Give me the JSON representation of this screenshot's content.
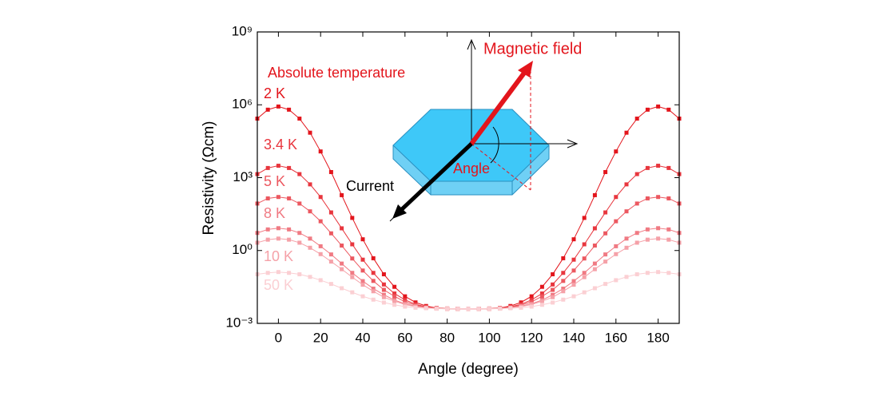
{
  "chart_data": {
    "type": "scatter",
    "xlabel": "Angle (degree)",
    "ylabel": "Resistivity (Ωcm)",
    "legend_title": "Absolute temperature",
    "annotations": [
      "Magnetic field",
      "Angle",
      "Current"
    ],
    "yscale": "log",
    "xlim": [
      -10,
      190
    ],
    "xticks": [
      0,
      20,
      40,
      60,
      80,
      100,
      120,
      140,
      160,
      180
    ],
    "ylim": [
      0.001,
      1000000000
    ],
    "yticks": [
      {
        "value": 0.001,
        "label": "10⁻³"
      },
      {
        "value": 1,
        "label": "10⁰"
      },
      {
        "value": 1000,
        "label": "10³"
      },
      {
        "value": 1000000,
        "label": "10⁶"
      },
      {
        "value": 1000000000,
        "label": "10⁹"
      }
    ],
    "x": [
      -10,
      -5,
      0,
      5,
      10,
      15,
      20,
      25,
      30,
      35,
      40,
      45,
      50,
      55,
      60,
      65,
      70,
      75,
      80,
      85,
      90,
      95,
      100,
      105,
      110,
      115,
      120,
      125,
      130,
      135,
      140,
      145,
      150,
      155,
      160,
      165,
      170,
      175,
      180,
      185,
      190
    ],
    "series": [
      {
        "name": "2 K",
        "color": "#e3151c",
        "values": [
          270000,
          630000,
          850000,
          630000,
          270000,
          71000,
          12000,
          1700,
          190,
          22,
          2.9,
          0.48,
          0.105,
          0.032,
          0.013,
          0.0073,
          0.0052,
          0.0043,
          0.0041,
          0.004,
          0.004,
          0.004,
          0.0041,
          0.0043,
          0.0052,
          0.0073,
          0.013,
          0.032,
          0.105,
          0.48,
          2.9,
          22,
          190,
          1700,
          12000,
          71000,
          270000,
          630000,
          850000,
          630000,
          270000
        ]
      },
      {
        "name": "3.4 K",
        "color": "#e8363e",
        "values": [
          1400,
          2500,
          3100,
          2500,
          1400,
          530,
          160,
          37,
          8.2,
          1.8,
          0.42,
          0.12,
          0.04,
          0.017,
          0.0093,
          0.0061,
          0.0048,
          0.0042,
          0.004,
          0.004,
          0.004,
          0.004,
          0.004,
          0.0042,
          0.0048,
          0.0061,
          0.0093,
          0.017,
          0.04,
          0.12,
          0.42,
          1.8,
          8.2,
          37,
          160,
          530,
          1400,
          2500,
          3100,
          2500,
          1400
        ]
      },
      {
        "name": "5 K",
        "color": "#ec5860",
        "values": [
          86,
          140,
          160,
          140,
          86,
          41,
          16,
          5.1,
          1.6,
          0.47,
          0.15,
          0.056,
          0.024,
          0.013,
          0.0077,
          0.0056,
          0.0046,
          0.0042,
          0.004,
          0.004,
          0.004,
          0.004,
          0.004,
          0.0042,
          0.0046,
          0.0056,
          0.0077,
          0.013,
          0.024,
          0.056,
          0.15,
          0.47,
          1.6,
          5.1,
          16,
          41,
          86,
          140,
          160,
          140,
          86
        ]
      },
      {
        "name": "8 K",
        "color": "#f07a83",
        "values": [
          5.3,
          7.4,
          8.3,
          7.4,
          5.3,
          3.1,
          1.5,
          0.69,
          0.29,
          0.12,
          0.055,
          0.027,
          0.015,
          0.0091,
          0.0064,
          0.0051,
          0.0044,
          0.0041,
          0.004,
          0.004,
          0.004,
          0.004,
          0.004,
          0.0041,
          0.0044,
          0.0051,
          0.0064,
          0.0091,
          0.015,
          0.027,
          0.055,
          0.12,
          0.29,
          0.69,
          1.5,
          3.1,
          5.3,
          7.4,
          8.3,
          7.4,
          5.3
        ]
      },
      {
        "name": "10 K",
        "color": "#f5a1a8",
        "values": [
          2.1,
          2.8,
          3.1,
          2.8,
          2.1,
          1.3,
          0.71,
          0.35,
          0.17,
          0.08,
          0.039,
          0.021,
          0.012,
          0.0082,
          0.006,
          0.0049,
          0.0044,
          0.0041,
          0.004,
          0.004,
          0.004,
          0.004,
          0.004,
          0.0041,
          0.0044,
          0.0049,
          0.006,
          0.0082,
          0.012,
          0.021,
          0.039,
          0.08,
          0.17,
          0.35,
          0.71,
          1.3,
          2.1,
          2.8,
          3.1,
          2.8,
          2.1
        ]
      },
      {
        "name": "50 K",
        "color": "#fbcfd3",
        "values": [
          0.105,
          0.12,
          0.13,
          0.12,
          0.105,
          0.082,
          0.06,
          0.042,
          0.028,
          0.019,
          0.013,
          0.0095,
          0.0072,
          0.0058,
          0.0049,
          0.0044,
          0.0042,
          0.004,
          0.004,
          0.004,
          0.004,
          0.004,
          0.004,
          0.004,
          0.0042,
          0.0044,
          0.0049,
          0.0058,
          0.0072,
          0.0095,
          0.013,
          0.019,
          0.028,
          0.042,
          0.06,
          0.082,
          0.105,
          0.12,
          0.13,
          0.12,
          0.105
        ]
      }
    ]
  }
}
